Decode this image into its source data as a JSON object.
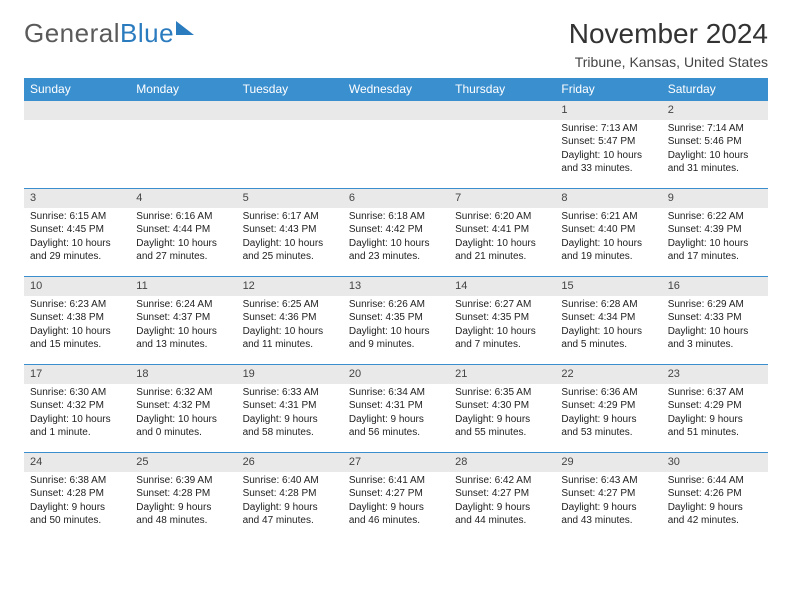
{
  "brand": {
    "part1": "General",
    "part2": "Blue"
  },
  "title": "November 2024",
  "location": "Tribune, Kansas, United States",
  "colors": {
    "header_bg": "#3a8fcf",
    "header_text": "#ffffff",
    "daynum_bg": "#e9e9e9",
    "row_border": "#3a8fcf",
    "body_text": "#222222",
    "brand_gray": "#5a5a5a",
    "brand_blue": "#2b7bbf"
  },
  "weekdays": [
    "Sunday",
    "Monday",
    "Tuesday",
    "Wednesday",
    "Thursday",
    "Friday",
    "Saturday"
  ],
  "weeks": [
    [
      {
        "n": "",
        "sr": "",
        "ss": "",
        "dl": ""
      },
      {
        "n": "",
        "sr": "",
        "ss": "",
        "dl": ""
      },
      {
        "n": "",
        "sr": "",
        "ss": "",
        "dl": ""
      },
      {
        "n": "",
        "sr": "",
        "ss": "",
        "dl": ""
      },
      {
        "n": "",
        "sr": "",
        "ss": "",
        "dl": ""
      },
      {
        "n": "1",
        "sr": "Sunrise: 7:13 AM",
        "ss": "Sunset: 5:47 PM",
        "dl": "Daylight: 10 hours and 33 minutes."
      },
      {
        "n": "2",
        "sr": "Sunrise: 7:14 AM",
        "ss": "Sunset: 5:46 PM",
        "dl": "Daylight: 10 hours and 31 minutes."
      }
    ],
    [
      {
        "n": "3",
        "sr": "Sunrise: 6:15 AM",
        "ss": "Sunset: 4:45 PM",
        "dl": "Daylight: 10 hours and 29 minutes."
      },
      {
        "n": "4",
        "sr": "Sunrise: 6:16 AM",
        "ss": "Sunset: 4:44 PM",
        "dl": "Daylight: 10 hours and 27 minutes."
      },
      {
        "n": "5",
        "sr": "Sunrise: 6:17 AM",
        "ss": "Sunset: 4:43 PM",
        "dl": "Daylight: 10 hours and 25 minutes."
      },
      {
        "n": "6",
        "sr": "Sunrise: 6:18 AM",
        "ss": "Sunset: 4:42 PM",
        "dl": "Daylight: 10 hours and 23 minutes."
      },
      {
        "n": "7",
        "sr": "Sunrise: 6:20 AM",
        "ss": "Sunset: 4:41 PM",
        "dl": "Daylight: 10 hours and 21 minutes."
      },
      {
        "n": "8",
        "sr": "Sunrise: 6:21 AM",
        "ss": "Sunset: 4:40 PM",
        "dl": "Daylight: 10 hours and 19 minutes."
      },
      {
        "n": "9",
        "sr": "Sunrise: 6:22 AM",
        "ss": "Sunset: 4:39 PM",
        "dl": "Daylight: 10 hours and 17 minutes."
      }
    ],
    [
      {
        "n": "10",
        "sr": "Sunrise: 6:23 AM",
        "ss": "Sunset: 4:38 PM",
        "dl": "Daylight: 10 hours and 15 minutes."
      },
      {
        "n": "11",
        "sr": "Sunrise: 6:24 AM",
        "ss": "Sunset: 4:37 PM",
        "dl": "Daylight: 10 hours and 13 minutes."
      },
      {
        "n": "12",
        "sr": "Sunrise: 6:25 AM",
        "ss": "Sunset: 4:36 PM",
        "dl": "Daylight: 10 hours and 11 minutes."
      },
      {
        "n": "13",
        "sr": "Sunrise: 6:26 AM",
        "ss": "Sunset: 4:35 PM",
        "dl": "Daylight: 10 hours and 9 minutes."
      },
      {
        "n": "14",
        "sr": "Sunrise: 6:27 AM",
        "ss": "Sunset: 4:35 PM",
        "dl": "Daylight: 10 hours and 7 minutes."
      },
      {
        "n": "15",
        "sr": "Sunrise: 6:28 AM",
        "ss": "Sunset: 4:34 PM",
        "dl": "Daylight: 10 hours and 5 minutes."
      },
      {
        "n": "16",
        "sr": "Sunrise: 6:29 AM",
        "ss": "Sunset: 4:33 PM",
        "dl": "Daylight: 10 hours and 3 minutes."
      }
    ],
    [
      {
        "n": "17",
        "sr": "Sunrise: 6:30 AM",
        "ss": "Sunset: 4:32 PM",
        "dl": "Daylight: 10 hours and 1 minute."
      },
      {
        "n": "18",
        "sr": "Sunrise: 6:32 AM",
        "ss": "Sunset: 4:32 PM",
        "dl": "Daylight: 10 hours and 0 minutes."
      },
      {
        "n": "19",
        "sr": "Sunrise: 6:33 AM",
        "ss": "Sunset: 4:31 PM",
        "dl": "Daylight: 9 hours and 58 minutes."
      },
      {
        "n": "20",
        "sr": "Sunrise: 6:34 AM",
        "ss": "Sunset: 4:31 PM",
        "dl": "Daylight: 9 hours and 56 minutes."
      },
      {
        "n": "21",
        "sr": "Sunrise: 6:35 AM",
        "ss": "Sunset: 4:30 PM",
        "dl": "Daylight: 9 hours and 55 minutes."
      },
      {
        "n": "22",
        "sr": "Sunrise: 6:36 AM",
        "ss": "Sunset: 4:29 PM",
        "dl": "Daylight: 9 hours and 53 minutes."
      },
      {
        "n": "23",
        "sr": "Sunrise: 6:37 AM",
        "ss": "Sunset: 4:29 PM",
        "dl": "Daylight: 9 hours and 51 minutes."
      }
    ],
    [
      {
        "n": "24",
        "sr": "Sunrise: 6:38 AM",
        "ss": "Sunset: 4:28 PM",
        "dl": "Daylight: 9 hours and 50 minutes."
      },
      {
        "n": "25",
        "sr": "Sunrise: 6:39 AM",
        "ss": "Sunset: 4:28 PM",
        "dl": "Daylight: 9 hours and 48 minutes."
      },
      {
        "n": "26",
        "sr": "Sunrise: 6:40 AM",
        "ss": "Sunset: 4:28 PM",
        "dl": "Daylight: 9 hours and 47 minutes."
      },
      {
        "n": "27",
        "sr": "Sunrise: 6:41 AM",
        "ss": "Sunset: 4:27 PM",
        "dl": "Daylight: 9 hours and 46 minutes."
      },
      {
        "n": "28",
        "sr": "Sunrise: 6:42 AM",
        "ss": "Sunset: 4:27 PM",
        "dl": "Daylight: 9 hours and 44 minutes."
      },
      {
        "n": "29",
        "sr": "Sunrise: 6:43 AM",
        "ss": "Sunset: 4:27 PM",
        "dl": "Daylight: 9 hours and 43 minutes."
      },
      {
        "n": "30",
        "sr": "Sunrise: 6:44 AM",
        "ss": "Sunset: 4:26 PM",
        "dl": "Daylight: 9 hours and 42 minutes."
      }
    ]
  ]
}
